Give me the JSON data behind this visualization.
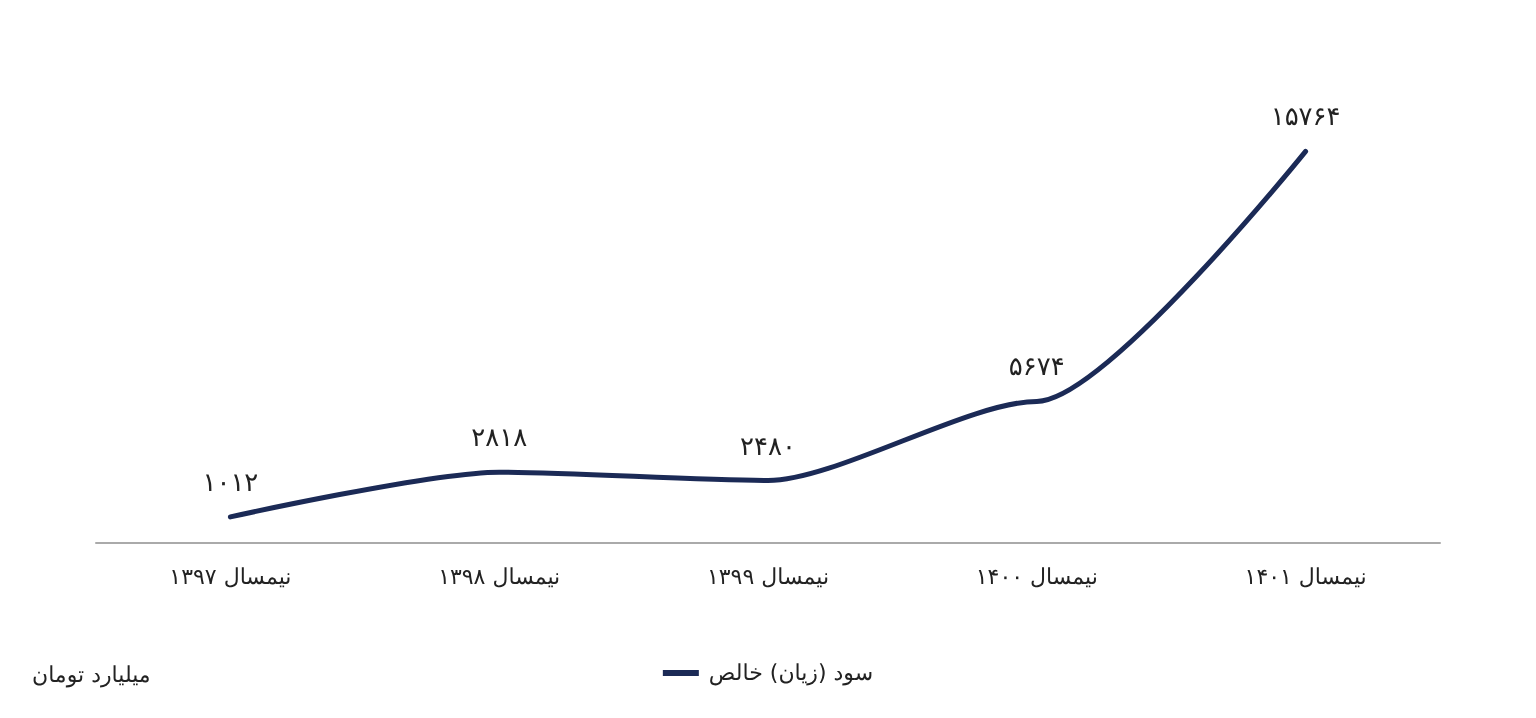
{
  "chart_data": {
    "type": "line",
    "categories": [
      "نیمسال ۱۳۹۷",
      "نیمسال ۱۳۹۸",
      "نیمسال ۱۳۹۹",
      "نیمسال ۱۴۰۰",
      "نیمسال ۱۴۰۱"
    ],
    "series": [
      {
        "name": "سود (زیان) خالص",
        "color": "#1b2a56",
        "values": [
          1012,
          2818,
          2480,
          5674,
          15764
        ],
        "value_labels": [
          "۱۰۱۲",
          "۲۸۱۸",
          "۲۴۸۰",
          "۵۶۷۴",
          "۱۵۷۶۴"
        ]
      }
    ],
    "annotations": [
      "میلیارد تومان"
    ],
    "legend": "bottom",
    "grid": false,
    "marker": "none",
    "line_style": "solid"
  }
}
